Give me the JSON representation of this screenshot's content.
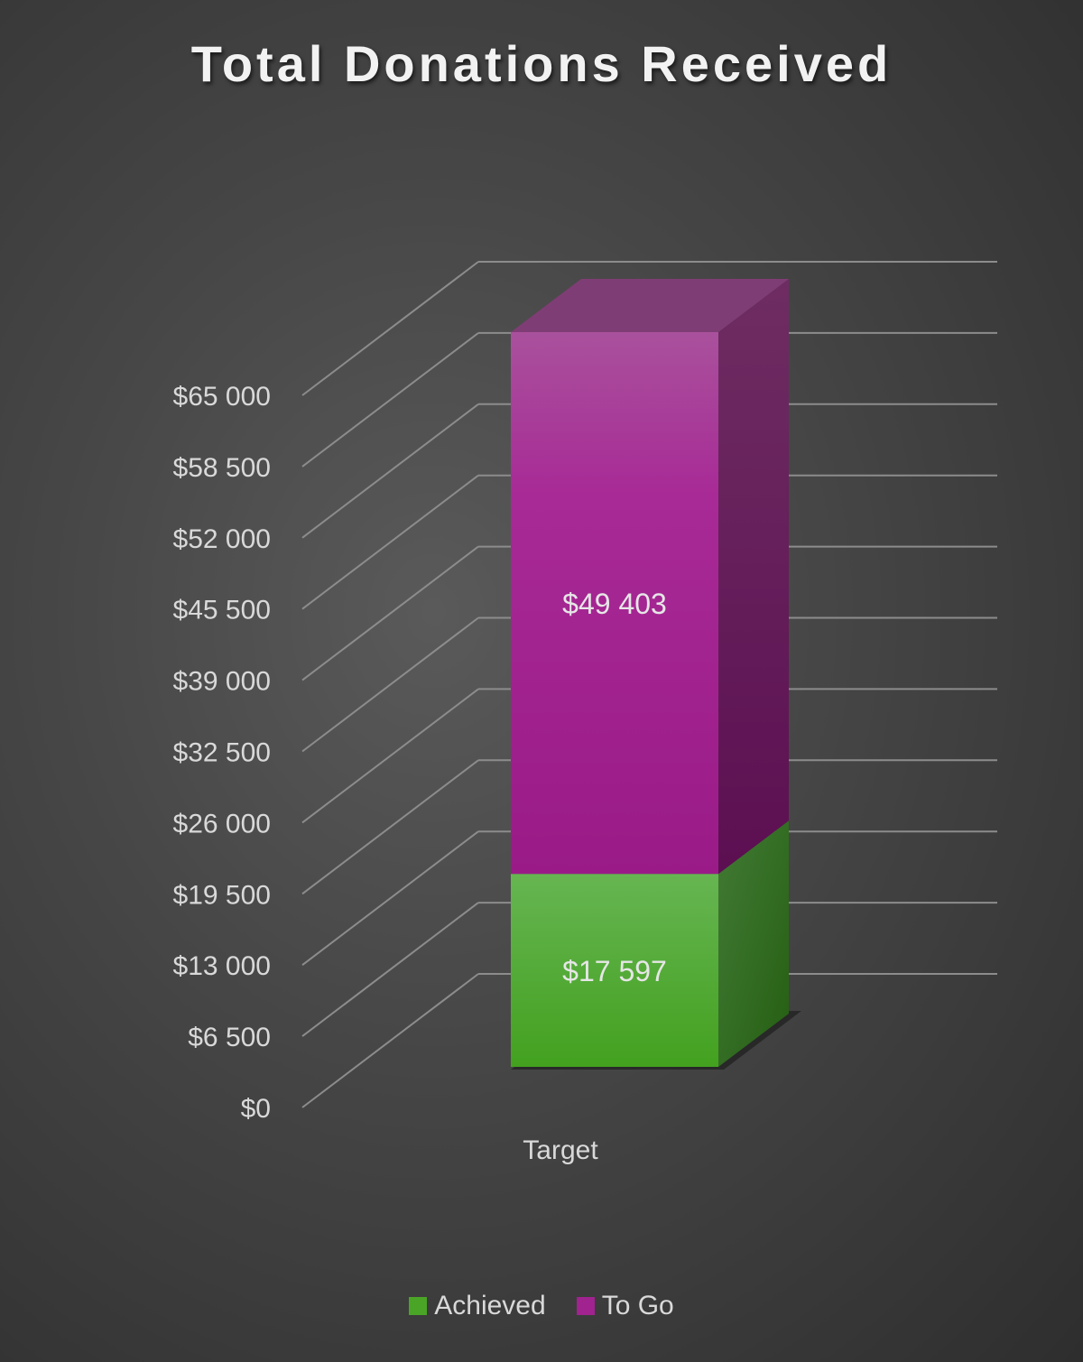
{
  "chart_data": {
    "type": "bar",
    "subtype": "3d-stacked-column",
    "title": "Total Donations Received",
    "categories": [
      "Target"
    ],
    "series": [
      {
        "name": "Achieved",
        "values": [
          17597
        ],
        "label": "$17 597",
        "color": "#4aa526"
      },
      {
        "name": "To Go",
        "values": [
          49403
        ],
        "label": "$49 403",
        "color": "#a0238f"
      }
    ],
    "yticks": [
      0,
      6500,
      13000,
      19500,
      26000,
      32500,
      39000,
      45500,
      52000,
      58500,
      65000
    ],
    "ytick_labels": [
      "$0",
      "$6 500",
      "$13 000",
      "$19 500",
      "$26 000",
      "$32 500",
      "$39 000",
      "$45 500",
      "$52 000",
      "$58 500",
      "$65 000"
    ],
    "ylim": [
      0,
      65000
    ],
    "grid": true,
    "legend": "bottom",
    "xlabel": "",
    "ylabel": ""
  }
}
